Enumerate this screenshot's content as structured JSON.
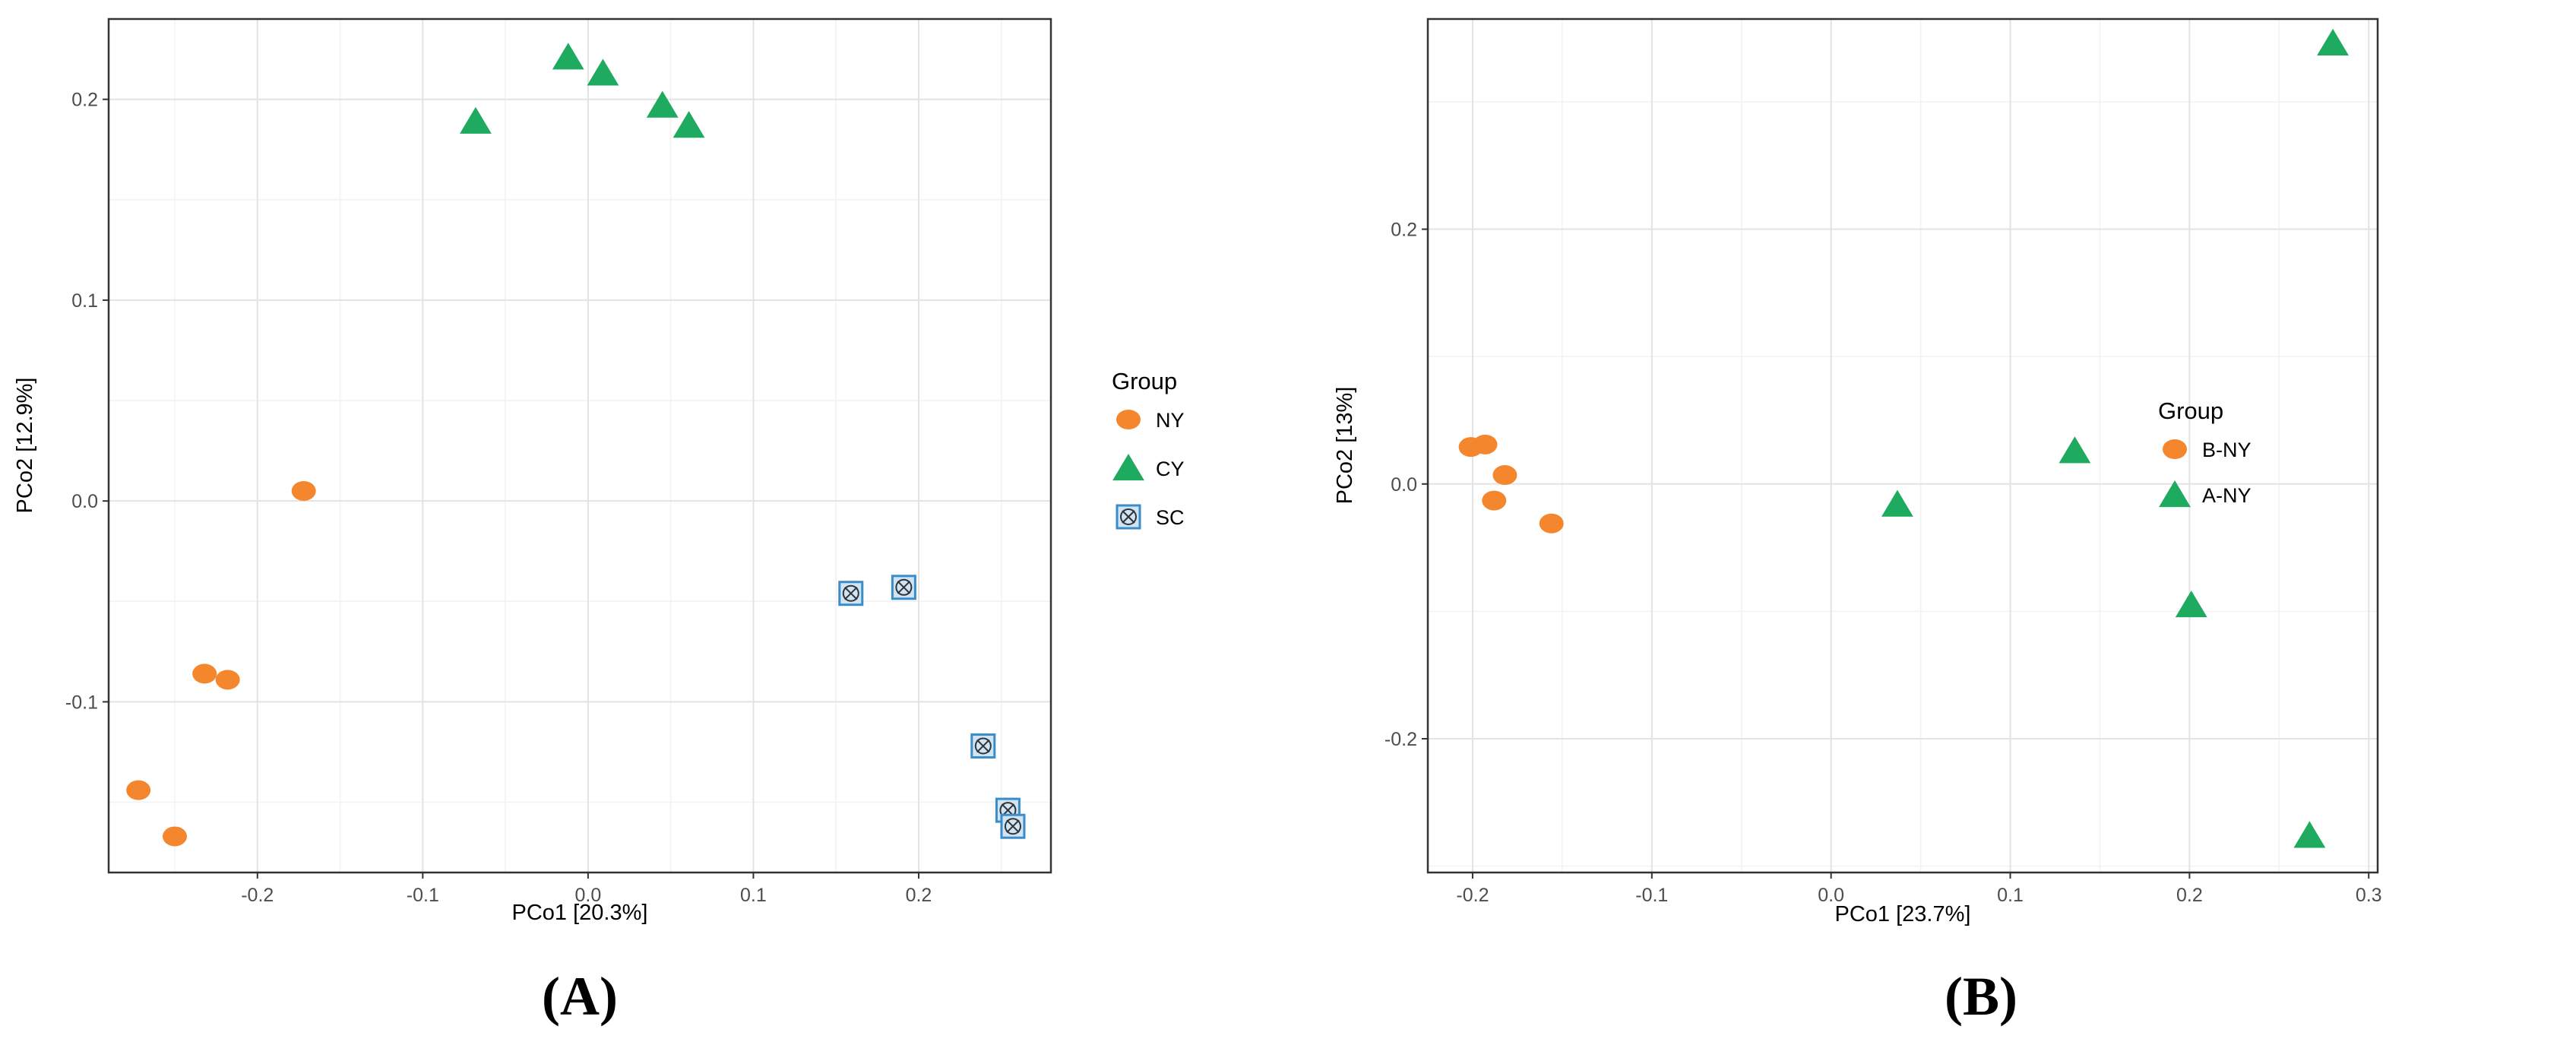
{
  "chart_data": [
    {
      "type": "scatter",
      "panel_label": "(A)",
      "xlabel": "PCo1 [20.3%]",
      "ylabel": "PCo2 [12.9%]",
      "xlim": [
        -0.29,
        0.28
      ],
      "ylim": [
        -0.185,
        0.24
      ],
      "x_ticks": [
        -0.2,
        -0.1,
        0.0,
        0.1,
        0.2
      ],
      "x_tick_labels": [
        "-0.2",
        "-0.1",
        "0.0",
        "0.1",
        "0.2"
      ],
      "y_ticks": [
        -0.1,
        0.0,
        0.1,
        0.2
      ],
      "y_tick_labels": [
        "-0.1",
        "0.0",
        "0.1",
        "0.2"
      ],
      "grid": true,
      "legend": {
        "title": "Group",
        "position": "right",
        "items": [
          {
            "label": "NY",
            "marker": "circle",
            "color": "#F4862E"
          },
          {
            "label": "CY",
            "marker": "triangle",
            "color": "#1EAA5F"
          },
          {
            "label": "SC",
            "marker": "boxed-x",
            "color": "#3A8DC9"
          }
        ]
      },
      "series": [
        {
          "name": "NY",
          "marker": "circle",
          "color": "#F4862E",
          "points": [
            [
              -0.172,
              0.005
            ],
            [
              -0.232,
              -0.086
            ],
            [
              -0.218,
              -0.089
            ],
            [
              -0.272,
              -0.144
            ],
            [
              -0.25,
              -0.167
            ]
          ]
        },
        {
          "name": "CY",
          "marker": "triangle",
          "color": "#1EAA5F",
          "points": [
            [
              -0.068,
              0.189
            ],
            [
              -0.012,
              0.221
            ],
            [
              0.009,
              0.213
            ],
            [
              0.045,
              0.197
            ],
            [
              0.061,
              0.187
            ]
          ]
        },
        {
          "name": "SC",
          "marker": "boxed-x",
          "color": "#3A8DC9",
          "points": [
            [
              0.159,
              -0.046
            ],
            [
              0.191,
              -0.043
            ],
            [
              0.239,
              -0.122
            ],
            [
              0.254,
              -0.154
            ],
            [
              0.257,
              -0.162
            ]
          ]
        }
      ]
    },
    {
      "type": "scatter",
      "panel_label": "(B)",
      "xlabel": "PCo1 [23.7%]",
      "ylabel": "PCo2 [13%]",
      "xlim": [
        -0.225,
        0.305
      ],
      "ylim": [
        -0.305,
        0.365
      ],
      "x_ticks": [
        -0.2,
        -0.1,
        0.0,
        0.1,
        0.2,
        0.3
      ],
      "x_tick_labels": [
        "-0.2",
        "-0.1",
        "0.0",
        "0.1",
        "0.2",
        "0.3"
      ],
      "y_ticks": [
        -0.2,
        0.0,
        0.2
      ],
      "y_tick_labels": [
        "-0.2",
        "0.0",
        "0.2"
      ],
      "grid": true,
      "legend": {
        "title": "Group",
        "position": "right",
        "items": [
          {
            "label": "B-NY",
            "marker": "circle",
            "color": "#F4862E"
          },
          {
            "label": "A-NY",
            "marker": "triangle",
            "color": "#1EAA5F"
          }
        ]
      },
      "series": [
        {
          "name": "B-NY",
          "marker": "circle",
          "color": "#F4862E",
          "points": [
            [
              -0.201,
              0.029
            ],
            [
              -0.193,
              0.031
            ],
            [
              -0.182,
              0.007
            ],
            [
              -0.188,
              -0.013
            ],
            [
              -0.156,
              -0.031
            ]
          ]
        },
        {
          "name": "A-NY",
          "marker": "triangle",
          "color": "#1EAA5F",
          "points": [
            [
              0.037,
              -0.016
            ],
            [
              0.136,
              0.026
            ],
            [
              0.201,
              -0.095
            ],
            [
              0.28,
              0.346
            ],
            [
              0.267,
              -0.276
            ]
          ]
        }
      ]
    }
  ]
}
